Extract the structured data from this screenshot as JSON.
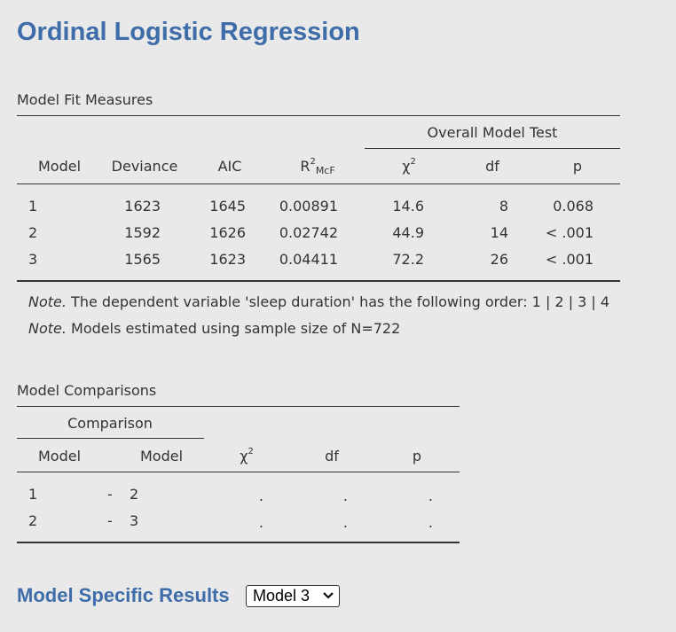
{
  "title": "Ordinal Logistic Regression",
  "fit": {
    "section_title": "Model Fit Measures",
    "group_header": "Overall Model Test",
    "headers": {
      "model": "Model",
      "deviance": "Deviance",
      "aic": "AIC",
      "r2_main": "R",
      "r2_sup": "2",
      "r2_sub": "McF",
      "chi_main": "χ",
      "chi_sup": "2",
      "df": "df",
      "p": "p"
    },
    "rows": [
      {
        "model": "1",
        "deviance": "1623",
        "aic": "1645",
        "r2": "0.00891",
        "chi": "14.6",
        "df": "8",
        "p": "0.068"
      },
      {
        "model": "2",
        "deviance": "1592",
        "aic": "1626",
        "r2": "0.02742",
        "chi": "44.9",
        "df": "14",
        "p": "< .001"
      },
      {
        "model": "3",
        "deviance": "1565",
        "aic": "1623",
        "r2": "0.04411",
        "chi": "72.2",
        "df": "26",
        "p": "< .001"
      }
    ],
    "notes": [
      {
        "label": "Note.",
        "text": " The dependent variable 'sleep duration' has the following order: 1 | 2 | 3 | 4"
      },
      {
        "label": "Note.",
        "text": " Models estimated using sample size of N=722"
      }
    ]
  },
  "comparisons": {
    "section_title": "Model Comparisons",
    "group_header": "Comparison",
    "headers": {
      "model_a": "Model",
      "model_b": "Model",
      "chi_main": "χ",
      "chi_sup": "2",
      "df": "df",
      "p": "p"
    },
    "rows": [
      {
        "a": "1",
        "dash": "-",
        "b": "2",
        "chi": ".",
        "df": ".",
        "p": "."
      },
      {
        "a": "2",
        "dash": "-",
        "b": "3",
        "chi": ".",
        "df": ".",
        "p": "."
      }
    ]
  },
  "model_specific": {
    "title": "Model Specific Results",
    "selected": "Model 3"
  }
}
